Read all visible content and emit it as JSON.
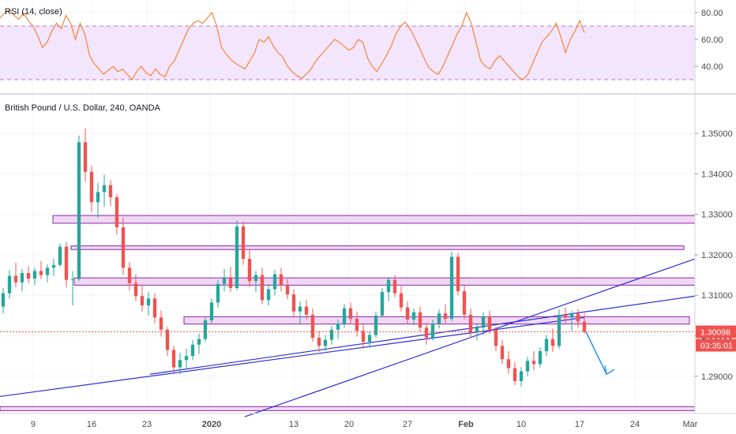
{
  "colors": {
    "up": "#26a69a",
    "down": "#ef5350",
    "rsi_line": "#f57c2a",
    "rsi_band_fill": "#f3e5fc",
    "rsi_band_border": "#9c27b0",
    "zone_fill": "#f0d8f5",
    "zone_border": "#8e24aa",
    "trendline": "#2f2fd6",
    "projection_arrow": "#2196f3",
    "price_tag": "#ef5350",
    "grid": "#f0f3f7"
  },
  "chart_data": [
    {
      "type": "line",
      "name": "rsi-panel",
      "title": "RSI (14, close)",
      "x_labels": [],
      "y_ticks": [
        "80.00",
        "60.00",
        "40.00"
      ],
      "band": {
        "upper": 70,
        "lower": 30
      },
      "series": [
        {
          "name": "",
          "values": [
            76,
            80,
            82,
            78,
            75,
            80,
            74,
            70,
            63,
            54,
            58,
            66,
            72,
            68,
            78,
            72,
            60,
            72,
            64,
            48,
            42,
            38,
            34,
            37,
            40,
            36,
            38,
            34,
            30,
            36,
            40,
            35,
            33,
            38,
            34,
            32,
            40,
            44,
            52,
            60,
            68,
            72,
            74,
            72,
            76,
            80,
            70,
            54,
            49,
            45,
            42,
            40,
            38,
            44,
            50,
            60,
            58,
            62,
            55,
            50,
            47,
            40,
            36,
            33,
            31,
            34,
            38,
            44,
            48,
            52,
            56,
            60,
            58,
            55,
            52,
            54,
            60,
            58,
            46,
            40,
            36,
            42,
            48,
            55,
            64,
            70,
            73,
            68,
            61,
            54,
            46,
            39,
            36,
            34,
            40,
            48,
            56,
            64,
            70,
            80,
            72,
            58,
            44,
            40,
            38,
            44,
            48,
            44,
            40,
            36,
            32,
            30,
            34,
            42,
            50,
            58,
            62,
            66,
            72,
            62,
            50,
            60,
            66,
            74,
            65
          ]
        }
      ]
    },
    {
      "type": "candlestick",
      "name": "price-panel",
      "title": "British Pound / U.S. Dollar, 240, OANDA",
      "x_labels": [
        "9",
        "16",
        "23",
        "2020",
        "13",
        "20",
        "27",
        "Feb",
        "10",
        "17",
        "24",
        "Mar"
      ],
      "y_ticks": [
        "1.35000",
        "1.34000",
        "1.33000",
        "1.32000",
        "1.31000",
        "1.30000",
        "1.29000"
      ],
      "current_price": "1.30098",
      "countdown": "03:35:01",
      "series": [
        {
          "name": "",
          "candles": [
            [
              1.3072,
              1.3118,
              1.3055,
              1.3105
            ],
            [
              1.3105,
              1.3162,
              1.3092,
              1.3148
            ],
            [
              1.3148,
              1.318,
              1.312,
              1.3132
            ],
            [
              1.3132,
              1.3165,
              1.311,
              1.3155
            ],
            [
              1.3155,
              1.3172,
              1.313,
              1.3141
            ],
            [
              1.3141,
              1.3168,
              1.3125,
              1.316
            ],
            [
              1.316,
              1.3185,
              1.314,
              1.315
            ],
            [
              1.315,
              1.3176,
              1.3132,
              1.3168
            ],
            [
              1.3168,
              1.319,
              1.3148,
              1.3175
            ],
            [
              1.3175,
              1.3228,
              1.317,
              1.322
            ],
            [
              1.322,
              1.3232,
              1.312,
              1.3138
            ],
            [
              1.3138,
              1.316,
              1.3075,
              1.314
            ],
            [
              1.314,
              1.3495,
              1.3135,
              1.3478
            ],
            [
              1.3478,
              1.3512,
              1.338,
              1.3405
            ],
            [
              1.3405,
              1.342,
              1.3305,
              1.333
            ],
            [
              1.333,
              1.3378,
              1.3292,
              1.3355
            ],
            [
              1.3355,
              1.3398,
              1.3318,
              1.3372
            ],
            [
              1.3372,
              1.3385,
              1.332,
              1.3342
            ],
            [
              1.3342,
              1.335,
              1.325,
              1.3268
            ],
            [
              1.3268,
              1.3292,
              1.315,
              1.3168
            ],
            [
              1.3168,
              1.3182,
              1.3112,
              1.313
            ],
            [
              1.313,
              1.3152,
              1.3085,
              1.3098
            ],
            [
              1.3098,
              1.3125,
              1.306,
              1.3075
            ],
            [
              1.3075,
              1.3108,
              1.305,
              1.3092
            ],
            [
              1.3092,
              1.3105,
              1.303,
              1.3045
            ],
            [
              1.3045,
              1.3062,
              1.2998,
              1.3015
            ],
            [
              1.3015,
              1.3022,
              1.295,
              1.2965
            ],
            [
              1.2965,
              1.2975,
              1.2905,
              1.2922
            ],
            [
              1.2922,
              1.2958,
              1.2905,
              1.294
            ],
            [
              1.294,
              1.2968,
              1.2918,
              1.295
            ],
            [
              1.295,
              1.299,
              1.294,
              1.2978
            ],
            [
              1.2978,
              1.3005,
              1.2955,
              1.2992
            ],
            [
              1.2992,
              1.3045,
              1.2985,
              1.3038
            ],
            [
              1.3038,
              1.3092,
              1.303,
              1.3082
            ],
            [
              1.3082,
              1.3138,
              1.307,
              1.3128
            ],
            [
              1.3128,
              1.3165,
              1.311,
              1.3142
            ],
            [
              1.3142,
              1.317,
              1.3108,
              1.3118
            ],
            [
              1.3118,
              1.3285,
              1.3112,
              1.327
            ],
            [
              1.327,
              1.3282,
              1.3175,
              1.319
            ],
            [
              1.319,
              1.3212,
              1.312,
              1.3135
            ],
            [
              1.3135,
              1.316,
              1.3108,
              1.315
            ],
            [
              1.315,
              1.3168,
              1.3078,
              1.3088
            ],
            [
              1.3088,
              1.3128,
              1.3075,
              1.3115
            ],
            [
              1.3115,
              1.3162,
              1.31,
              1.3152
            ],
            [
              1.3152,
              1.3168,
              1.311,
              1.3125
            ],
            [
              1.3125,
              1.314,
              1.309,
              1.3102
            ],
            [
              1.3102,
              1.3115,
              1.3045,
              1.306
            ],
            [
              1.306,
              1.3085,
              1.303,
              1.3072
            ],
            [
              1.3072,
              1.3088,
              1.304,
              1.3052
            ],
            [
              1.3052,
              1.3068,
              1.2985,
              1.2995
            ],
            [
              1.2995,
              1.3012,
              1.296,
              1.2975
            ],
            [
              1.2975,
              1.3002,
              1.2962,
              1.299
            ],
            [
              1.299,
              1.3025,
              1.2978,
              1.3015
            ],
            [
              1.3015,
              1.304,
              1.2992,
              1.303
            ],
            [
              1.303,
              1.3078,
              1.302,
              1.3068
            ],
            [
              1.3068,
              1.3082,
              1.3028,
              1.3042
            ],
            [
              1.3042,
              1.306,
              1.2998,
              1.3012
            ],
            [
              1.3012,
              1.303,
              1.2968,
              1.2985
            ],
            [
              1.2985,
              1.3012,
              1.297,
              1.3002
            ],
            [
              1.3002,
              1.306,
              1.2995,
              1.305
            ],
            [
              1.305,
              1.3118,
              1.3045,
              1.3108
            ],
            [
              1.3108,
              1.3145,
              1.3085,
              1.3138
            ],
            [
              1.3138,
              1.315,
              1.3095,
              1.3105
            ],
            [
              1.3105,
              1.3122,
              1.306,
              1.307
            ],
            [
              1.307,
              1.3085,
              1.3028,
              1.304
            ],
            [
              1.304,
              1.3068,
              1.3025,
              1.3058
            ],
            [
              1.3058,
              1.3072,
              1.301,
              1.302
            ],
            [
              1.302,
              1.3032,
              1.2978,
              1.2995
            ],
            [
              1.2995,
              1.304,
              1.2988,
              1.303
            ],
            [
              1.303,
              1.3065,
              1.3018,
              1.3055
            ],
            [
              1.3055,
              1.3078,
              1.303,
              1.3042
            ],
            [
              1.3042,
              1.3208,
              1.3035,
              1.3195
            ],
            [
              1.3195,
              1.3205,
              1.31,
              1.311
            ],
            [
              1.311,
              1.3125,
              1.304,
              1.3052
            ],
            [
              1.3052,
              1.3068,
              1.2995,
              1.3008
            ],
            [
              1.3008,
              1.303,
              1.2988,
              1.302
            ],
            [
              1.302,
              1.3058,
              1.3002,
              1.3048
            ],
            [
              1.3048,
              1.3062,
              1.3005,
              1.3015
            ],
            [
              1.3015,
              1.3022,
              1.2962,
              1.2975
            ],
            [
              1.2975,
              1.299,
              1.293,
              1.2942
            ],
            [
              1.2942,
              1.2962,
              1.2905,
              1.292
            ],
            [
              1.292,
              1.2935,
              1.2878,
              1.2888
            ],
            [
              1.2888,
              1.2922,
              1.2875,
              1.2912
            ],
            [
              1.2912,
              1.2948,
              1.29,
              1.2938
            ],
            [
              1.2938,
              1.2962,
              1.2915,
              1.293
            ],
            [
              1.293,
              1.2972,
              1.2922,
              1.2962
            ],
            [
              1.2962,
              1.3002,
              1.295,
              1.2992
            ],
            [
              1.2992,
              1.3018,
              1.296,
              1.2975
            ],
            [
              1.2975,
              1.3065,
              1.2968,
              1.3052
            ],
            [
              1.3052,
              1.307,
              1.303,
              1.3045
            ],
            [
              1.3045,
              1.3062,
              1.3012,
              1.3055
            ],
            [
              1.3055,
              1.3065,
              1.302,
              1.3035
            ],
            [
              1.3035,
              1.3055,
              1.3005,
              1.301
            ]
          ]
        }
      ]
    }
  ]
}
